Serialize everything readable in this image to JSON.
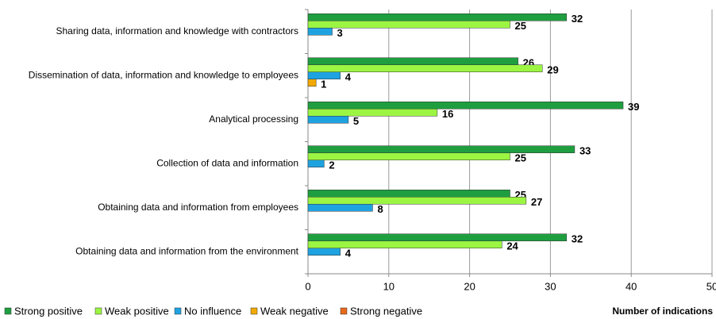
{
  "chart_data": {
    "type": "bar",
    "orientation": "horizontal",
    "x_label": "Number of indications",
    "categories": [
      "Sharing data, information and knowledge with contractors",
      "Dissemination of data, information and knowledge to employees",
      "Analytical processing",
      "Collection of data and information",
      "Obtaining data and information from employees",
      "Obtaining data and information from the environment"
    ],
    "series": [
      {
        "name": "Strong positive",
        "color": "#1f9e40",
        "values": [
          32,
          26,
          39,
          33,
          25,
          32
        ]
      },
      {
        "name": "Weak positive",
        "color": "#9bf542",
        "values": [
          25,
          29,
          16,
          25,
          27,
          24
        ]
      },
      {
        "name": "No influence",
        "color": "#1fa2e0",
        "values": [
          3,
          4,
          5,
          2,
          8,
          4
        ]
      },
      {
        "name": "Weak negative",
        "color": "#f2a900",
        "values": [
          null,
          1,
          null,
          null,
          null,
          null
        ]
      },
      {
        "name": "Strong negative",
        "color": "#e8681a",
        "values": [
          null,
          null,
          null,
          null,
          null,
          null
        ]
      }
    ],
    "xlim": [
      0,
      50
    ],
    "xticks": [
      0,
      10,
      20,
      30,
      40,
      50
    ],
    "grid": true
  }
}
